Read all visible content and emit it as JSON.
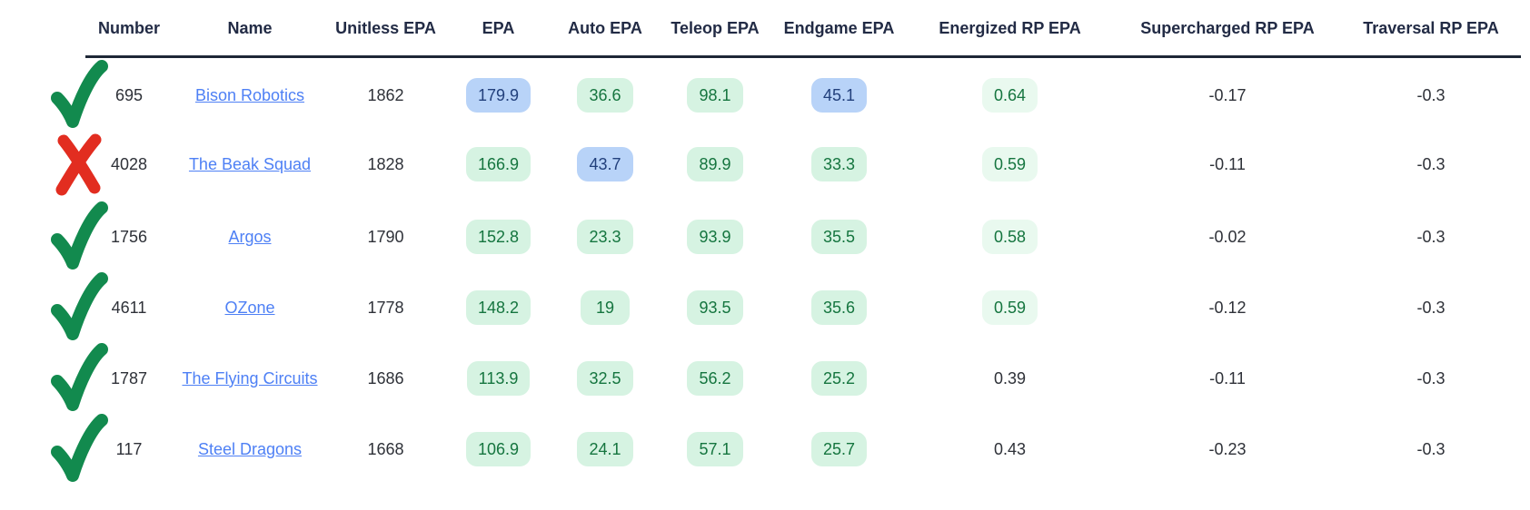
{
  "table": {
    "columns": [
      {
        "id": "number",
        "label": "Number"
      },
      {
        "id": "name",
        "label": "Name"
      },
      {
        "id": "unitless-epa",
        "label": "Unitless EPA"
      },
      {
        "id": "epa",
        "label": "EPA"
      },
      {
        "id": "auto-epa",
        "label": "Auto EPA"
      },
      {
        "id": "teleop-epa",
        "label": "Teleop EPA"
      },
      {
        "id": "endgame-epa",
        "label": "Endgame EPA"
      },
      {
        "id": "energized-rp-epa",
        "label": "Energized RP EPA"
      },
      {
        "id": "supercharged-rp-epa",
        "label": "Supercharged RP EPA"
      },
      {
        "id": "traversal-rp-epa",
        "label": "Traversal RP EPA"
      }
    ],
    "styles": {
      "header_text": "#222b45",
      "header_rule": "#1e2736",
      "body_text": "#2e3138",
      "link_color": "#4e80f5",
      "pill_green_bg": "#d6f3e2",
      "pill_green_light_bg": "#e9f9ef",
      "pill_green_text": "#15753f",
      "pill_blue_bg": "#b8d3f8",
      "pill_blue_text": "#22407c",
      "check_color": "#128a4e",
      "x_color": "#e22d20"
    },
    "rows": [
      {
        "result_icon": "check-icon",
        "number": "695",
        "name": "Bison Robotics",
        "unitless_epa": "1862",
        "epa": {
          "v": "179.9",
          "c": "blue"
        },
        "auto_epa": {
          "v": "36.6",
          "c": "green"
        },
        "teleop_epa": {
          "v": "98.1",
          "c": "green"
        },
        "endgame_epa": {
          "v": "45.1",
          "c": "blue"
        },
        "energized_rp_epa": {
          "v": "0.64",
          "c": "green-light"
        },
        "supercharged_rp_epa": {
          "v": "-0.17",
          "c": "none"
        },
        "traversal_rp_epa": {
          "v": "-0.3",
          "c": "none"
        }
      },
      {
        "result_icon": "x-icon",
        "number": "4028",
        "name": "The Beak Squad",
        "unitless_epa": "1828",
        "epa": {
          "v": "166.9",
          "c": "green"
        },
        "auto_epa": {
          "v": "43.7",
          "c": "blue"
        },
        "teleop_epa": {
          "v": "89.9",
          "c": "green"
        },
        "endgame_epa": {
          "v": "33.3",
          "c": "green"
        },
        "energized_rp_epa": {
          "v": "0.59",
          "c": "green-light"
        },
        "supercharged_rp_epa": {
          "v": "-0.11",
          "c": "none"
        },
        "traversal_rp_epa": {
          "v": "-0.3",
          "c": "none"
        }
      },
      {
        "result_icon": "check-icon",
        "number": "1756",
        "name": "Argos",
        "unitless_epa": "1790",
        "epa": {
          "v": "152.8",
          "c": "green"
        },
        "auto_epa": {
          "v": "23.3",
          "c": "green"
        },
        "teleop_epa": {
          "v": "93.9",
          "c": "green"
        },
        "endgame_epa": {
          "v": "35.5",
          "c": "green"
        },
        "energized_rp_epa": {
          "v": "0.58",
          "c": "green-light"
        },
        "supercharged_rp_epa": {
          "v": "-0.02",
          "c": "none"
        },
        "traversal_rp_epa": {
          "v": "-0.3",
          "c": "none"
        }
      },
      {
        "result_icon": "check-icon",
        "number": "4611",
        "name": "OZone",
        "unitless_epa": "1778",
        "epa": {
          "v": "148.2",
          "c": "green"
        },
        "auto_epa": {
          "v": "19",
          "c": "green"
        },
        "teleop_epa": {
          "v": "93.5",
          "c": "green"
        },
        "endgame_epa": {
          "v": "35.6",
          "c": "green"
        },
        "energized_rp_epa": {
          "v": "0.59",
          "c": "green-light"
        },
        "supercharged_rp_epa": {
          "v": "-0.12",
          "c": "none"
        },
        "traversal_rp_epa": {
          "v": "-0.3",
          "c": "none"
        }
      },
      {
        "result_icon": "check-icon",
        "number": "1787",
        "name": "The Flying Circuits",
        "unitless_epa": "1686",
        "epa": {
          "v": "113.9",
          "c": "green"
        },
        "auto_epa": {
          "v": "32.5",
          "c": "green"
        },
        "teleop_epa": {
          "v": "56.2",
          "c": "green"
        },
        "endgame_epa": {
          "v": "25.2",
          "c": "green"
        },
        "energized_rp_epa": {
          "v": "0.39",
          "c": "none"
        },
        "supercharged_rp_epa": {
          "v": "-0.11",
          "c": "none"
        },
        "traversal_rp_epa": {
          "v": "-0.3",
          "c": "none"
        }
      },
      {
        "result_icon": "check-icon",
        "number": "117",
        "name": "Steel Dragons",
        "unitless_epa": "1668",
        "epa": {
          "v": "106.9",
          "c": "green"
        },
        "auto_epa": {
          "v": "24.1",
          "c": "green"
        },
        "teleop_epa": {
          "v": "57.1",
          "c": "green"
        },
        "endgame_epa": {
          "v": "25.7",
          "c": "green"
        },
        "energized_rp_epa": {
          "v": "0.43",
          "c": "none"
        },
        "supercharged_rp_epa": {
          "v": "-0.23",
          "c": "none"
        },
        "traversal_rp_epa": {
          "v": "-0.3",
          "c": "none"
        }
      }
    ]
  }
}
